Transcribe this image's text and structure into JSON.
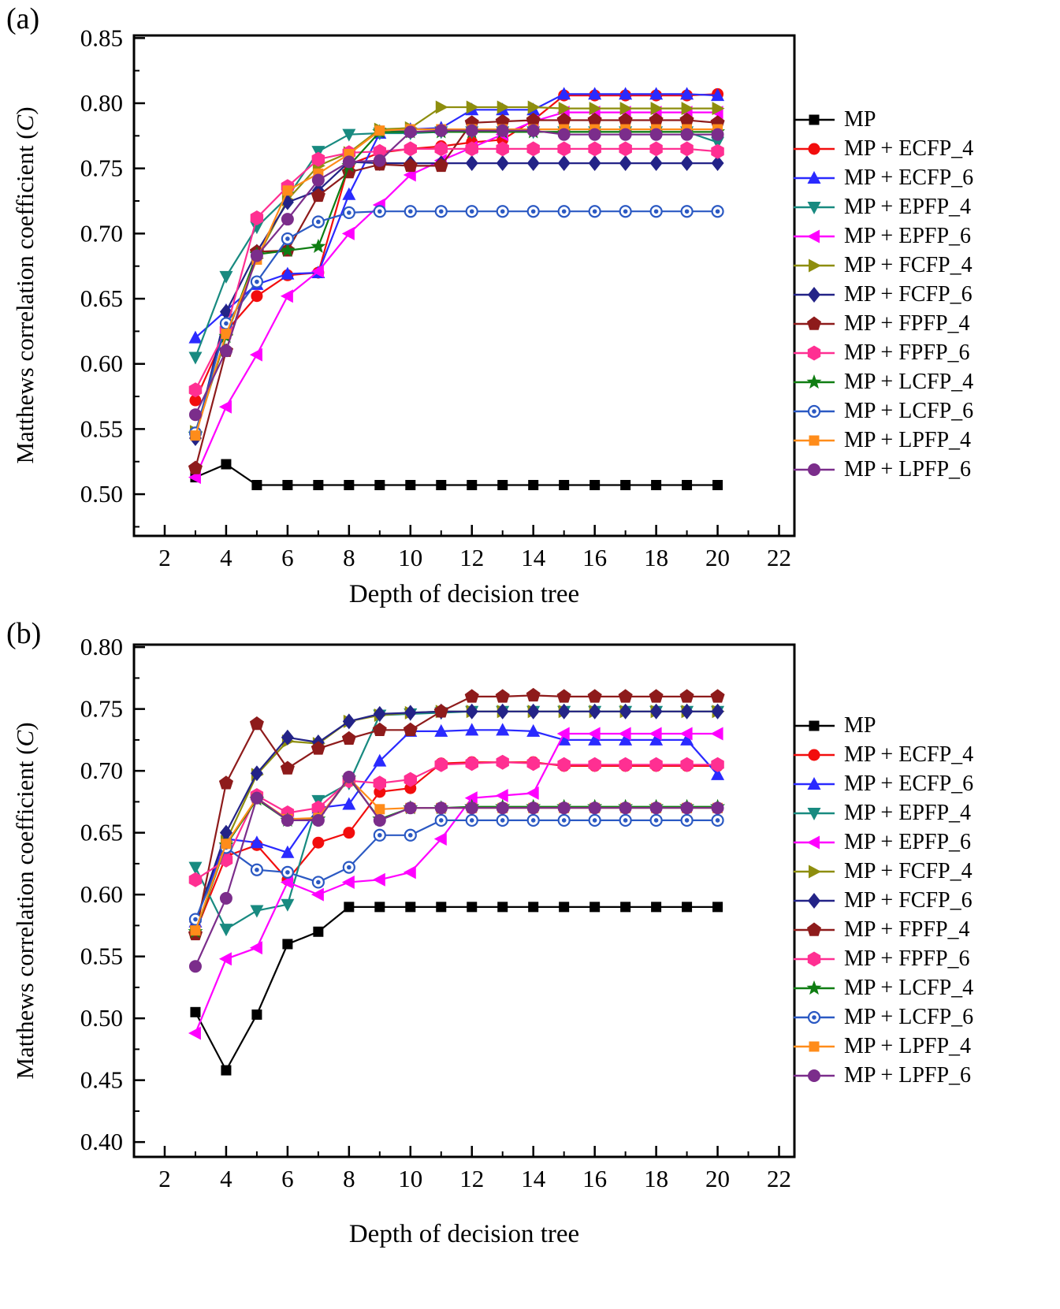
{
  "chart_data": [
    {
      "type": "line",
      "panel_label": "(a)",
      "xlabel": "Depth of decision tree",
      "ylabel_prefix": "Matthews correlation coefficient (",
      "ylabel_var": "C",
      "ylabel_suffix": ")",
      "xlim": [
        1,
        22.5
      ],
      "ylim": [
        0.468,
        0.852
      ],
      "xticks": [
        2,
        4,
        6,
        8,
        10,
        12,
        14,
        16,
        18,
        20,
        22
      ],
      "yticks": [
        0.5,
        0.55,
        0.6,
        0.65,
        0.7,
        0.75,
        0.8,
        0.85
      ],
      "x": [
        3,
        4,
        5,
        6,
        7,
        8,
        9,
        10,
        11,
        12,
        13,
        14,
        15,
        16,
        17,
        18,
        19,
        20
      ],
      "grid": false,
      "legend_position": "right",
      "series": [
        {
          "name": "MP",
          "color": "#000000",
          "marker": "square",
          "values": [
            0.513,
            0.523,
            0.507,
            0.507,
            0.507,
            0.507,
            0.507,
            0.507,
            0.507,
            0.507,
            0.507,
            0.507,
            0.507,
            0.507,
            0.507,
            0.507,
            0.507,
            0.507
          ]
        },
        {
          "name": "MP + ECFP_4",
          "color": "#f20d0d",
          "marker": "circle",
          "values": [
            0.572,
            0.625,
            0.652,
            0.668,
            0.67,
            0.753,
            0.762,
            0.765,
            0.767,
            0.77,
            0.772,
            0.787,
            0.806,
            0.806,
            0.806,
            0.806,
            0.806,
            0.807
          ]
        },
        {
          "name": "MP + ECFP_6",
          "color": "#2a2aff",
          "marker": "triangle-up",
          "values": [
            0.62,
            0.641,
            0.661,
            0.669,
            0.67,
            0.73,
            0.777,
            0.78,
            0.781,
            0.795,
            0.795,
            0.795,
            0.807,
            0.807,
            0.807,
            0.807,
            0.807,
            0.806
          ]
        },
        {
          "name": "MP + EPFP_4",
          "color": "#188a80",
          "marker": "triangle-down",
          "values": [
            0.605,
            0.667,
            0.705,
            0.728,
            0.763,
            0.776,
            0.777,
            0.777,
            0.778,
            0.778,
            0.778,
            0.778,
            0.778,
            0.778,
            0.778,
            0.778,
            0.778,
            0.77
          ]
        },
        {
          "name": "MP + EPFP_6",
          "color": "#ff00ff",
          "marker": "triangle-left",
          "values": [
            0.513,
            0.567,
            0.607,
            0.652,
            0.671,
            0.7,
            0.722,
            0.745,
            0.756,
            0.766,
            0.776,
            0.786,
            0.793,
            0.793,
            0.793,
            0.793,
            0.793,
            0.793
          ]
        },
        {
          "name": "MP + FCFP_4",
          "color": "#8e8e0e",
          "marker": "triangle-right",
          "values": [
            0.548,
            0.622,
            0.681,
            0.726,
            0.752,
            0.762,
            0.78,
            0.781,
            0.797,
            0.797,
            0.797,
            0.797,
            0.796,
            0.796,
            0.796,
            0.796,
            0.796,
            0.796
          ]
        },
        {
          "name": "MP + FCFP_6",
          "color": "#232387",
          "marker": "diamond",
          "values": [
            0.543,
            0.64,
            0.686,
            0.724,
            0.733,
            0.755,
            0.754,
            0.754,
            0.754,
            0.754,
            0.754,
            0.754,
            0.754,
            0.754,
            0.754,
            0.754,
            0.754,
            0.754
          ]
        },
        {
          "name": "MP + FPFP_4",
          "color": "#8e1b1b",
          "marker": "pentagon",
          "values": [
            0.52,
            0.61,
            0.686,
            0.687,
            0.729,
            0.747,
            0.753,
            0.752,
            0.752,
            0.785,
            0.786,
            0.787,
            0.787,
            0.787,
            0.787,
            0.787,
            0.787,
            0.785
          ]
        },
        {
          "name": "MP + FPFP_6",
          "color": "#ff2f92",
          "marker": "hexagon",
          "values": [
            0.58,
            0.626,
            0.712,
            0.736,
            0.757,
            0.762,
            0.763,
            0.765,
            0.765,
            0.765,
            0.765,
            0.765,
            0.765,
            0.765,
            0.765,
            0.765,
            0.765,
            0.763
          ]
        },
        {
          "name": "MP + LCFP_4",
          "color": "#0f7d12",
          "marker": "star",
          "values": [
            0.546,
            0.621,
            0.684,
            0.687,
            0.69,
            0.752,
            0.778,
            0.778,
            0.778,
            0.778,
            0.778,
            0.778,
            0.778,
            0.778,
            0.778,
            0.778,
            0.778,
            0.778
          ]
        },
        {
          "name": "MP + LCFP_6",
          "color": "#2b59c3",
          "marker": "circle-dot",
          "values": [
            0.547,
            0.631,
            0.663,
            0.696,
            0.709,
            0.716,
            0.717,
            0.717,
            0.717,
            0.717,
            0.717,
            0.717,
            0.717,
            0.717,
            0.717,
            0.717,
            0.717,
            0.717
          ]
        },
        {
          "name": "MP + LPFP_4",
          "color": "#ff8c1a",
          "marker": "square",
          "values": [
            0.545,
            0.623,
            0.68,
            0.733,
            0.746,
            0.761,
            0.779,
            0.78,
            0.78,
            0.78,
            0.78,
            0.78,
            0.78,
            0.78,
            0.78,
            0.78,
            0.78,
            0.78
          ]
        },
        {
          "name": "MP + LPFP_6",
          "color": "#7b2d8b",
          "marker": "sphere",
          "values": [
            0.561,
            0.61,
            0.683,
            0.711,
            0.741,
            0.755,
            0.756,
            0.778,
            0.779,
            0.779,
            0.779,
            0.779,
            0.776,
            0.776,
            0.776,
            0.776,
            0.776,
            0.776
          ]
        }
      ]
    },
    {
      "type": "line",
      "panel_label": "(b)",
      "xlabel": "Depth of decision tree",
      "ylabel_prefix": "Matthews correlation coefficient (",
      "ylabel_var": "C",
      "ylabel_suffix": ")",
      "xlim": [
        1,
        22.5
      ],
      "ylim": [
        0.388,
        0.802
      ],
      "xticks": [
        2,
        4,
        6,
        8,
        10,
        12,
        14,
        16,
        18,
        20,
        22
      ],
      "yticks": [
        0.4,
        0.45,
        0.5,
        0.55,
        0.6,
        0.65,
        0.7,
        0.75,
        0.8
      ],
      "x": [
        3,
        4,
        5,
        6,
        7,
        8,
        9,
        10,
        11,
        12,
        13,
        14,
        15,
        16,
        17,
        18,
        19,
        20
      ],
      "grid": false,
      "legend_position": "right",
      "series": [
        {
          "name": "MP",
          "color": "#000000",
          "marker": "square",
          "values": [
            0.505,
            0.458,
            0.503,
            0.56,
            0.57,
            0.59,
            0.59,
            0.59,
            0.59,
            0.59,
            0.59,
            0.59,
            0.59,
            0.59,
            0.59,
            0.59,
            0.59,
            0.59
          ]
        },
        {
          "name": "MP + ECFP_4",
          "color": "#f20d0d",
          "marker": "circle",
          "values": [
            0.57,
            0.631,
            0.64,
            0.612,
            0.642,
            0.65,
            0.683,
            0.686,
            0.706,
            0.707,
            0.707,
            0.707,
            0.704,
            0.704,
            0.704,
            0.704,
            0.704,
            0.704
          ]
        },
        {
          "name": "MP + ECFP_6",
          "color": "#2a2aff",
          "marker": "triangle-up",
          "values": [
            0.578,
            0.645,
            0.642,
            0.634,
            0.67,
            0.673,
            0.708,
            0.732,
            0.732,
            0.733,
            0.733,
            0.732,
            0.725,
            0.725,
            0.725,
            0.725,
            0.725,
            0.697
          ]
        },
        {
          "name": "MP + EPFP_4",
          "color": "#188a80",
          "marker": "triangle-down",
          "values": [
            0.622,
            0.572,
            0.587,
            0.592,
            0.676,
            0.69,
            0.745,
            0.746,
            0.747,
            0.748,
            0.748,
            0.748,
            0.748,
            0.748,
            0.748,
            0.748,
            0.748,
            0.748
          ]
        },
        {
          "name": "MP + EPFP_6",
          "color": "#ff00ff",
          "marker": "triangle-left",
          "values": [
            0.488,
            0.548,
            0.557,
            0.61,
            0.6,
            0.61,
            0.612,
            0.618,
            0.645,
            0.678,
            0.68,
            0.682,
            0.73,
            0.73,
            0.73,
            0.73,
            0.73,
            0.73
          ]
        },
        {
          "name": "MP + FCFP_4",
          "color": "#8e8e0e",
          "marker": "triangle-right",
          "values": [
            0.57,
            0.643,
            0.697,
            0.724,
            0.722,
            0.74,
            0.745,
            0.747,
            0.748,
            0.748,
            0.748,
            0.748,
            0.748,
            0.748,
            0.748,
            0.748,
            0.748,
            0.748
          ]
        },
        {
          "name": "MP + FCFP_6",
          "color": "#232387",
          "marker": "diamond",
          "values": [
            0.578,
            0.65,
            0.698,
            0.727,
            0.723,
            0.74,
            0.746,
            0.747,
            0.748,
            0.748,
            0.748,
            0.748,
            0.748,
            0.748,
            0.748,
            0.748,
            0.748,
            0.748
          ]
        },
        {
          "name": "MP + FPFP_4",
          "color": "#8e1b1b",
          "marker": "pentagon",
          "values": [
            0.568,
            0.69,
            0.738,
            0.702,
            0.718,
            0.726,
            0.733,
            0.733,
            0.748,
            0.76,
            0.76,
            0.761,
            0.76,
            0.76,
            0.76,
            0.76,
            0.76,
            0.76
          ]
        },
        {
          "name": "MP + FPFP_6",
          "color": "#ff2f92",
          "marker": "hexagon",
          "values": [
            0.612,
            0.628,
            0.68,
            0.666,
            0.67,
            0.692,
            0.69,
            0.693,
            0.705,
            0.706,
            0.707,
            0.706,
            0.705,
            0.705,
            0.705,
            0.705,
            0.705,
            0.705
          ]
        },
        {
          "name": "MP + LCFP_4",
          "color": "#0f7d12",
          "marker": "star",
          "values": [
            0.57,
            0.64,
            0.677,
            0.66,
            0.661,
            0.694,
            0.661,
            0.67,
            0.67,
            0.671,
            0.671,
            0.671,
            0.671,
            0.671,
            0.671,
            0.671,
            0.671,
            0.671
          ]
        },
        {
          "name": "MP + LCFP_6",
          "color": "#2b59c3",
          "marker": "circle-dot",
          "values": [
            0.58,
            0.638,
            0.62,
            0.618,
            0.61,
            0.622,
            0.648,
            0.648,
            0.66,
            0.66,
            0.66,
            0.66,
            0.66,
            0.66,
            0.66,
            0.66,
            0.66,
            0.66
          ]
        },
        {
          "name": "MP + LPFP_4",
          "color": "#ff8c1a",
          "marker": "square",
          "values": [
            0.571,
            0.641,
            0.678,
            0.661,
            0.662,
            0.694,
            0.669,
            0.67,
            0.67,
            0.67,
            0.67,
            0.67,
            0.67,
            0.67,
            0.67,
            0.67,
            0.67,
            0.67
          ]
        },
        {
          "name": "MP + LPFP_6",
          "color": "#7b2d8b",
          "marker": "sphere",
          "values": [
            0.542,
            0.597,
            0.678,
            0.66,
            0.66,
            0.695,
            0.66,
            0.67,
            0.67,
            0.67,
            0.67,
            0.67,
            0.67,
            0.67,
            0.67,
            0.67,
            0.67,
            0.67
          ]
        }
      ]
    }
  ]
}
